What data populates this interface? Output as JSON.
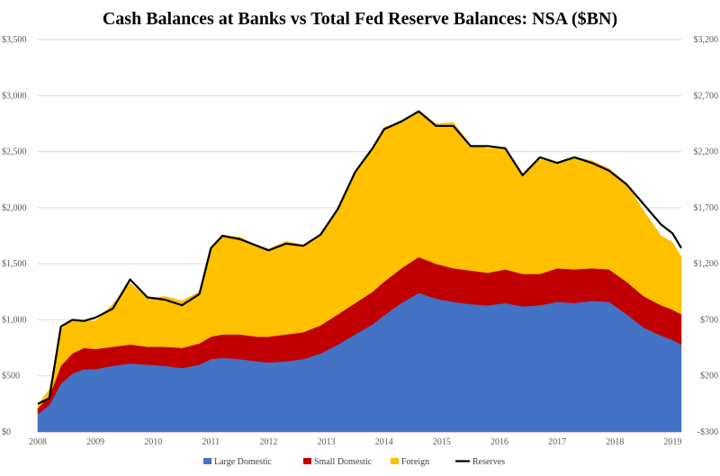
{
  "chart_data": {
    "type": "area",
    "title": "Cash Balances at Banks vs Total Fed Reserve Balances: NSA ($BN)",
    "xlabel": "",
    "ylabel": "",
    "x_ticks": [
      "2008",
      "2009",
      "2010",
      "2011",
      "2012",
      "2013",
      "2014",
      "2015",
      "2016",
      "2017",
      "2018",
      "2019"
    ],
    "x_range": [
      2008.0,
      2019.15
    ],
    "left_axis": {
      "ylim": [
        0,
        3500
      ],
      "ticks": [
        0,
        500,
        1000,
        1500,
        2000,
        2500,
        3000,
        3500
      ],
      "tick_labels": [
        "$0",
        "$500",
        "$1,000",
        "$1,500",
        "$2,000",
        "$2,500",
        "$3,000",
        "$3,500"
      ]
    },
    "right_axis": {
      "ylim": [
        -300,
        3200
      ],
      "ticks": [
        -300,
        200,
        700,
        1200,
        1700,
        2200,
        2700,
        3200
      ],
      "tick_labels": [
        "-$300",
        "$200",
        "$700",
        "$1,200",
        "$1,700",
        "$2,200",
        "$2,700",
        "$3,200"
      ]
    },
    "grid": true,
    "legend_position": "bottom",
    "x": [
      2008.0,
      2008.2,
      2008.4,
      2008.6,
      2008.8,
      2009.0,
      2009.3,
      2009.6,
      2009.9,
      2010.2,
      2010.5,
      2010.8,
      2011.0,
      2011.2,
      2011.5,
      2011.8,
      2012.0,
      2012.3,
      2012.6,
      2012.9,
      2013.2,
      2013.5,
      2013.8,
      2014.0,
      2014.3,
      2014.6,
      2014.9,
      2015.2,
      2015.5,
      2015.8,
      2016.1,
      2016.4,
      2016.7,
      2017.0,
      2017.3,
      2017.6,
      2017.9,
      2018.2,
      2018.5,
      2018.8,
      2019.0,
      2019.15
    ],
    "series": [
      {
        "name": "Large Domestic",
        "color": "#4472c4",
        "axis": "left",
        "stacked": true,
        "values": [
          160,
          240,
          430,
          520,
          560,
          560,
          590,
          610,
          600,
          590,
          570,
          600,
          650,
          660,
          650,
          630,
          620,
          630,
          650,
          700,
          780,
          870,
          960,
          1040,
          1150,
          1240,
          1190,
          1160,
          1140,
          1130,
          1150,
          1120,
          1130,
          1160,
          1150,
          1170,
          1160,
          1050,
          930,
          860,
          820,
          780
        ]
      },
      {
        "name": "Small Domestic",
        "color": "#c00000",
        "axis": "left",
        "stacked": true,
        "values": [
          50,
          80,
          160,
          180,
          190,
          180,
          170,
          170,
          160,
          170,
          180,
          190,
          200,
          210,
          220,
          220,
          230,
          240,
          240,
          250,
          270,
          280,
          290,
          300,
          310,
          320,
          310,
          300,
          300,
          290,
          300,
          290,
          280,
          300,
          300,
          290,
          290,
          290,
          280,
          270,
          270,
          270
        ]
      },
      {
        "name": "Foreign",
        "color": "#ffc000",
        "axis": "left",
        "stacked": true,
        "values": [
          30,
          60,
          330,
          300,
          240,
          250,
          380,
          550,
          430,
          450,
          420,
          460,
          800,
          880,
          870,
          810,
          780,
          830,
          780,
          800,
          950,
          1180,
          1290,
          1380,
          1300,
          1310,
          1250,
          1300,
          1120,
          1110,
          1090,
          880,
          1020,
          940,
          1000,
          960,
          900,
          880,
          760,
          620,
          600,
          510
        ]
      },
      {
        "name": "Reserves",
        "color": "#000000",
        "axis": "right",
        "stacked": false,
        "values": [
          -50,
          0,
          640,
          700,
          690,
          720,
          800,
          1060,
          900,
          880,
          830,
          930,
          1340,
          1450,
          1420,
          1360,
          1320,
          1380,
          1360,
          1460,
          1690,
          2020,
          2230,
          2400,
          2470,
          2560,
          2430,
          2430,
          2250,
          2250,
          2230,
          1990,
          2150,
          2100,
          2150,
          2100,
          2030,
          1910,
          1730,
          1550,
          1470,
          1340
        ]
      }
    ]
  }
}
